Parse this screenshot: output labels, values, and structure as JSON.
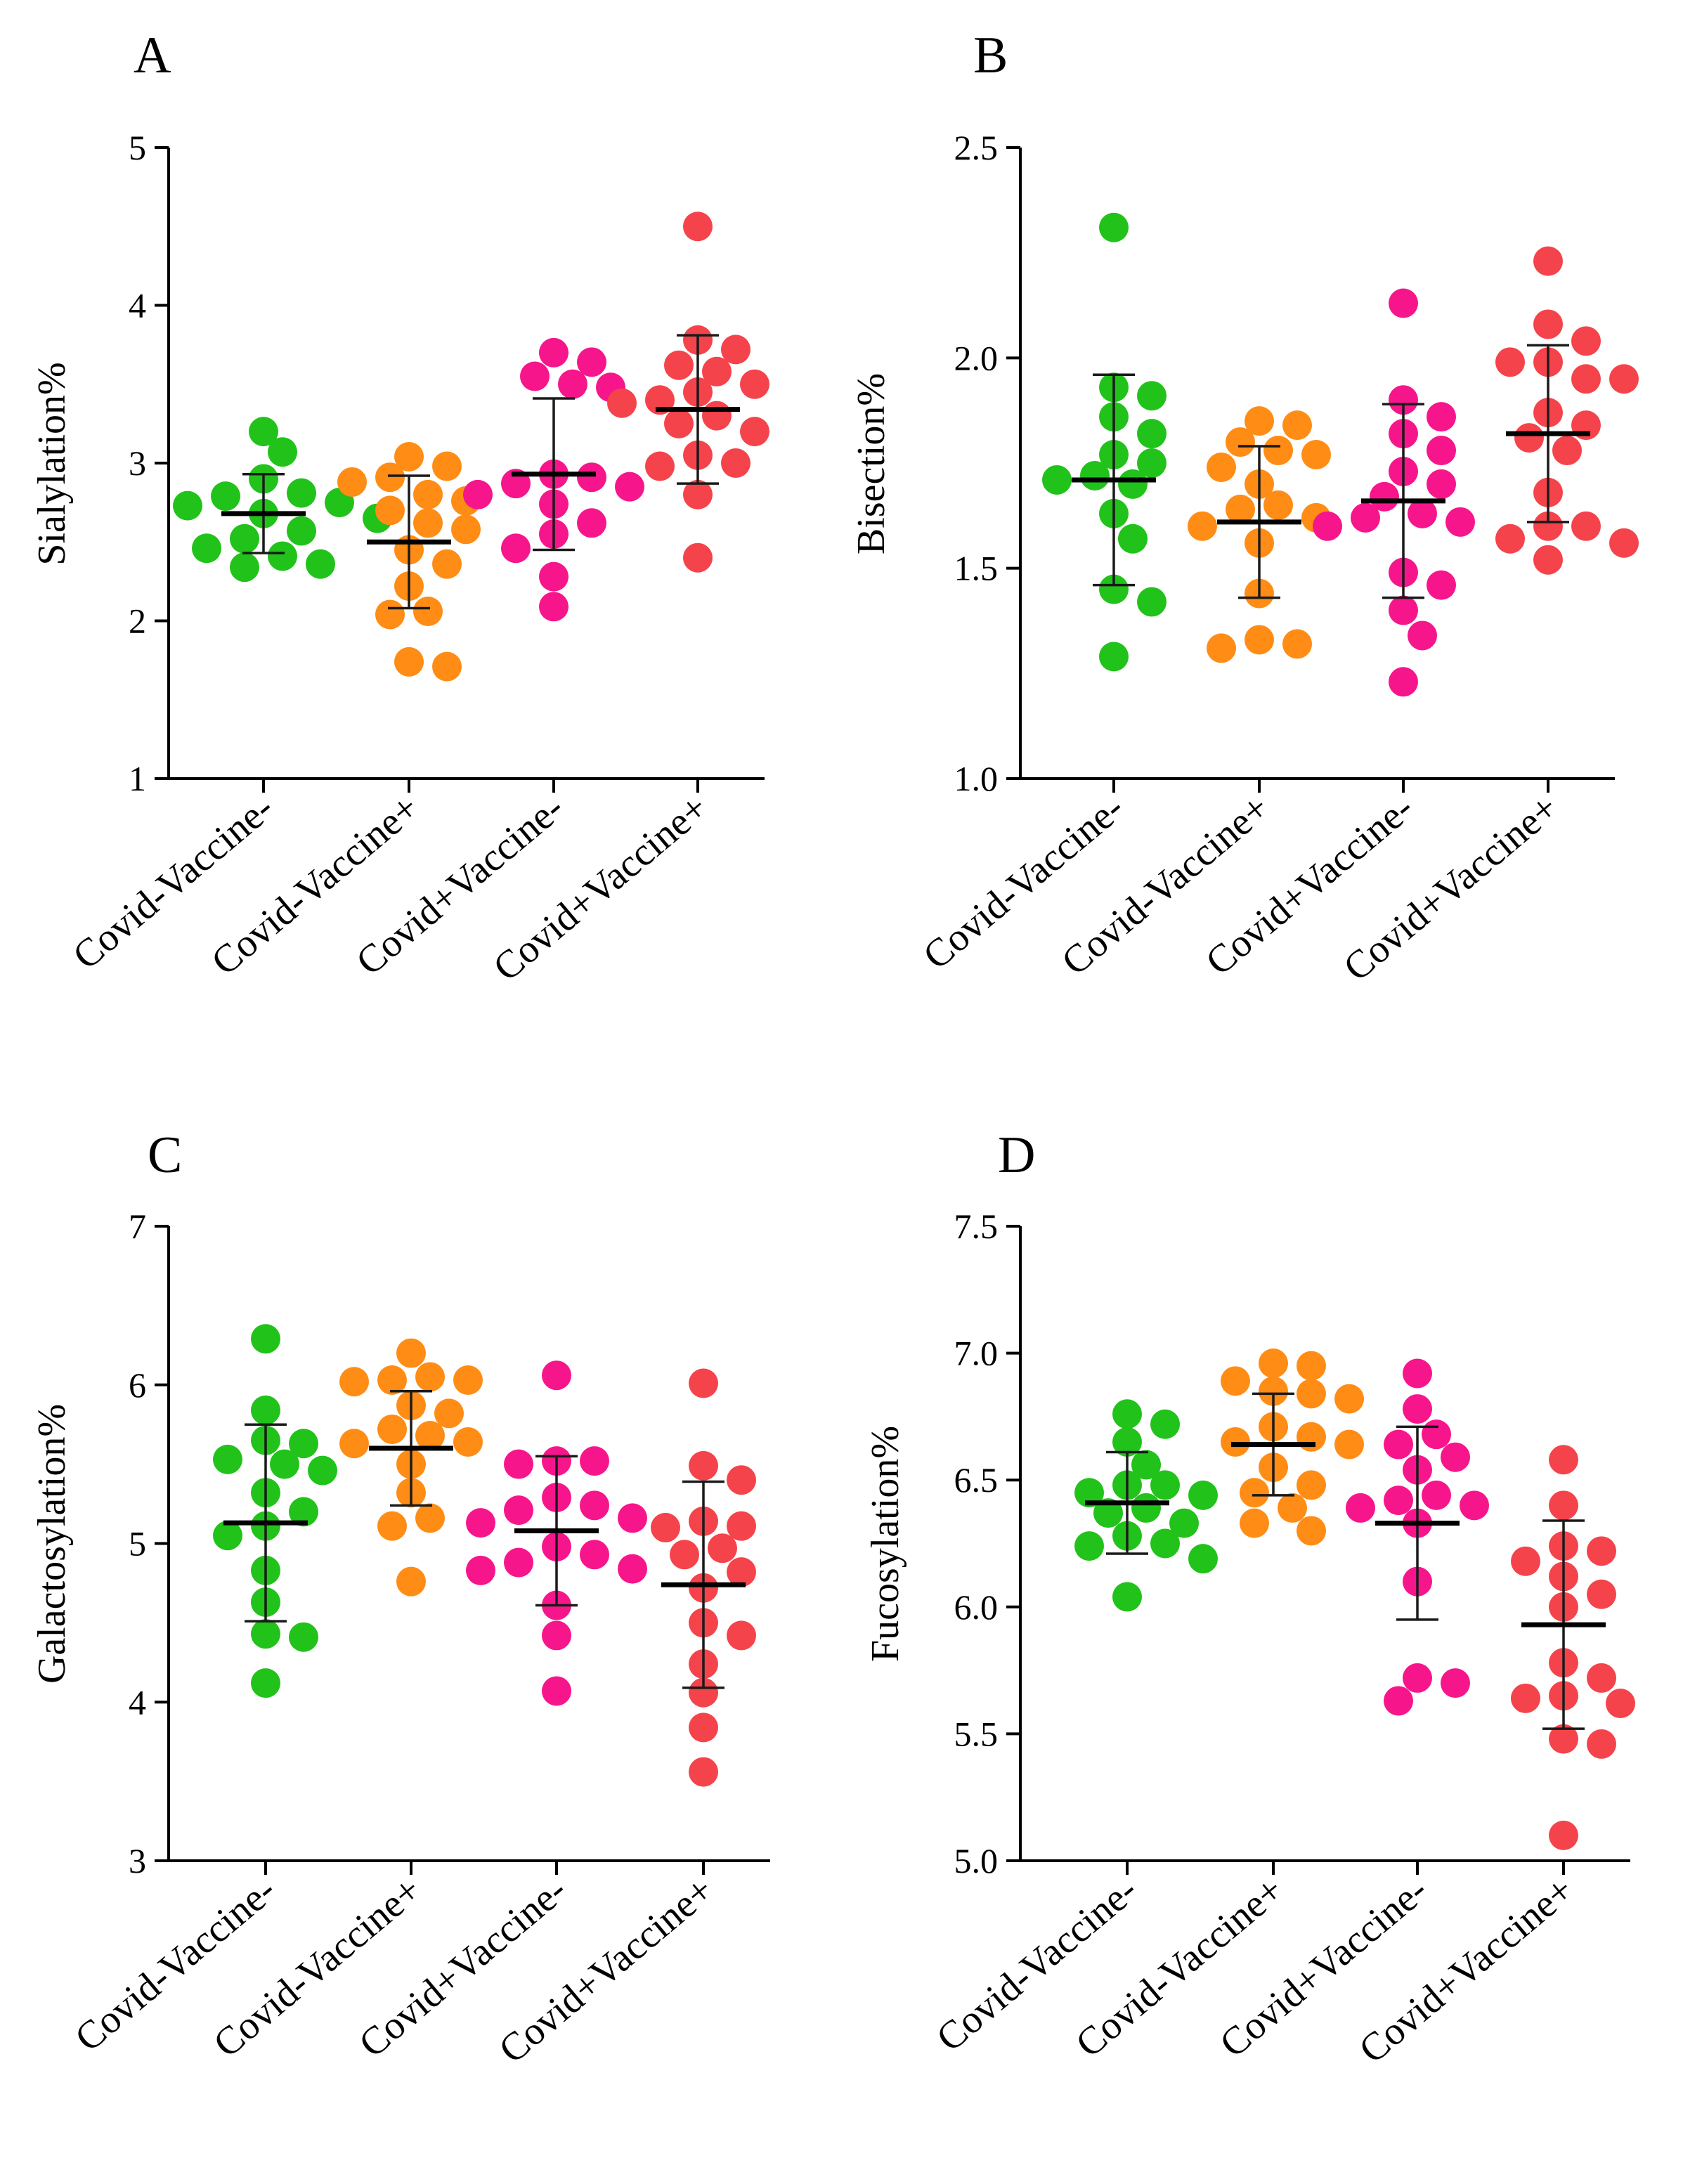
{
  "colors": {
    "Covid-Vaccine-": "#21c21a",
    "Covid-Vaccine+": "#ff8c14",
    "Covid+Vaccine-": "#f7158c",
    "Covid+Vaccine+": "#f5434b"
  },
  "chart_data": [
    {
      "type": "scatter",
      "panel": "A",
      "ylabel": "Sialylation%",
      "ylim": [
        1,
        5
      ],
      "yticks": [
        "1",
        "2",
        "3",
        "4",
        "5"
      ],
      "categories": [
        "Covid-Vaccine-",
        "Covid-Vaccine+",
        "Covid+Vaccine-",
        "Covid+Vaccine+"
      ],
      "groups": [
        {
          "name": "Covid-Vaccine-",
          "values": [
            3.2,
            3.07,
            2.9,
            2.81,
            2.79,
            2.75,
            2.73,
            2.68,
            2.65,
            2.57,
            2.52,
            2.46,
            2.41,
            2.36,
            2.34
          ],
          "mean": 2.68,
          "sd": 0.25
        },
        {
          "name": "Covid-Vaccine+",
          "values": [
            3.04,
            2.98,
            2.91,
            2.88,
            2.8,
            2.76,
            2.7,
            2.62,
            2.58,
            2.45,
            2.36,
            2.22,
            2.06,
            2.04,
            1.74,
            1.71
          ],
          "mean": 2.5,
          "sd": 0.42
        },
        {
          "name": "Covid+Vaccine-",
          "values": [
            3.7,
            3.64,
            3.55,
            3.5,
            3.48,
            2.93,
            2.91,
            2.87,
            2.85,
            2.8,
            2.74,
            2.62,
            2.55,
            2.46,
            2.28,
            2.09
          ],
          "mean": 2.93,
          "sd": 0.48
        },
        {
          "name": "Covid+Vaccine+",
          "values": [
            4.5,
            3.78,
            3.72,
            3.62,
            3.58,
            3.5,
            3.45,
            3.4,
            3.38,
            3.3,
            3.25,
            3.2,
            3.05,
            3.0,
            2.98,
            2.8,
            2.4
          ],
          "mean": 3.34,
          "sd": 0.47
        }
      ]
    },
    {
      "type": "scatter",
      "panel": "B",
      "ylabel": "Bisection%",
      "ylim": [
        1.0,
        2.5
      ],
      "yticks": [
        "1.0",
        "1.5",
        "2.0",
        "2.5"
      ],
      "categories": [
        "Covid-Vaccine-",
        "Covid-Vaccine+",
        "Covid+Vaccine-",
        "Covid+Vaccine+"
      ],
      "groups": [
        {
          "name": "Covid-Vaccine-",
          "values": [
            2.31,
            1.93,
            1.91,
            1.86,
            1.82,
            1.77,
            1.75,
            1.72,
            1.71,
            1.7,
            1.63,
            1.57,
            1.45,
            1.42,
            1.29
          ],
          "mean": 1.71,
          "sd": 0.25
        },
        {
          "name": "Covid-Vaccine+",
          "values": [
            1.85,
            1.84,
            1.8,
            1.78,
            1.77,
            1.74,
            1.7,
            1.65,
            1.64,
            1.62,
            1.6,
            1.56,
            1.44,
            1.33,
            1.32,
            1.31
          ],
          "mean": 1.61,
          "sd": 0.18
        },
        {
          "name": "Covid+Vaccine-",
          "values": [
            2.13,
            1.9,
            1.86,
            1.82,
            1.78,
            1.73,
            1.7,
            1.67,
            1.63,
            1.62,
            1.61,
            1.6,
            1.49,
            1.46,
            1.4,
            1.34,
            1.23
          ],
          "mean": 1.66,
          "sd": 0.23
        },
        {
          "name": "Covid+Vaccine+",
          "values": [
            2.23,
            2.08,
            2.04,
            1.99,
            1.99,
            1.95,
            1.95,
            1.87,
            1.84,
            1.81,
            1.78,
            1.68,
            1.6,
            1.6,
            1.57,
            1.56,
            1.52
          ],
          "mean": 1.82,
          "sd": 0.21
        }
      ]
    },
    {
      "type": "scatter",
      "panel": "C",
      "ylabel": "Galactosylation%",
      "ylim": [
        3,
        7
      ],
      "yticks": [
        "3",
        "4",
        "5",
        "6",
        "7"
      ],
      "categories": [
        "Covid-Vaccine-",
        "Covid-Vaccine+",
        "Covid+Vaccine-",
        "Covid+Vaccine+"
      ],
      "groups": [
        {
          "name": "Covid-Vaccine-",
          "values": [
            6.29,
            5.84,
            5.65,
            5.63,
            5.53,
            5.5,
            5.46,
            5.32,
            5.2,
            5.11,
            5.05,
            4.83,
            4.63,
            4.43,
            4.41,
            4.12
          ],
          "mean": 5.13,
          "sd": 0.62
        },
        {
          "name": "Covid-Vaccine+",
          "values": [
            6.2,
            6.05,
            6.03,
            6.03,
            6.02,
            5.87,
            5.82,
            5.72,
            5.68,
            5.64,
            5.63,
            5.5,
            5.32,
            5.16,
            5.11,
            4.76
          ],
          "mean": 5.6,
          "sd": 0.36
        },
        {
          "name": "Covid+Vaccine-",
          "values": [
            6.06,
            5.52,
            5.52,
            5.5,
            5.29,
            5.24,
            5.21,
            5.16,
            5.13,
            4.98,
            4.93,
            4.88,
            4.84,
            4.83,
            4.61,
            4.42,
            4.07
          ],
          "mean": 5.08,
          "sd": 0.47
        },
        {
          "name": "Covid+Vaccine+",
          "values": [
            6.01,
            5.49,
            5.4,
            5.14,
            5.11,
            5.1,
            4.97,
            4.93,
            4.82,
            4.72,
            4.5,
            4.42,
            4.24,
            4.06,
            3.84,
            3.56
          ],
          "mean": 4.74,
          "sd": 0.65
        }
      ]
    },
    {
      "type": "scatter",
      "panel": "D",
      "ylabel": "Fucosylation%",
      "ylim": [
        5.0,
        7.5
      ],
      "yticks": [
        "5.0",
        "5.5",
        "6.0",
        "6.5",
        "7.0",
        "7.5"
      ],
      "categories": [
        "Covid-Vaccine-",
        "Covid-Vaccine+",
        "Covid+Vaccine-",
        "Covid+Vaccine+"
      ],
      "groups": [
        {
          "name": "Covid-Vaccine-",
          "values": [
            6.76,
            6.72,
            6.65,
            6.56,
            6.48,
            6.48,
            6.45,
            6.44,
            6.39,
            6.37,
            6.33,
            6.28,
            6.25,
            6.24,
            6.19,
            6.04
          ],
          "mean": 6.41,
          "sd": 0.2
        },
        {
          "name": "Covid-Vaccine+",
          "values": [
            6.96,
            6.95,
            6.89,
            6.85,
            6.84,
            6.82,
            6.71,
            6.67,
            6.65,
            6.64,
            6.55,
            6.48,
            6.45,
            6.39,
            6.33,
            6.3
          ],
          "mean": 6.64,
          "sd": 0.2
        },
        {
          "name": "Covid+Vaccine-",
          "values": [
            6.92,
            6.78,
            6.68,
            6.64,
            6.59,
            6.54,
            6.44,
            6.42,
            6.4,
            6.39,
            6.33,
            6.1,
            5.72,
            5.7,
            5.63
          ],
          "mean": 6.33,
          "sd": 0.38
        },
        {
          "name": "Covid+Vaccine+",
          "values": [
            6.58,
            6.4,
            6.24,
            6.22,
            6.18,
            6.12,
            6.05,
            6.0,
            5.78,
            5.72,
            5.65,
            5.64,
            5.62,
            5.48,
            5.46,
            5.1
          ],
          "mean": 5.93,
          "sd": 0.41
        }
      ]
    }
  ]
}
